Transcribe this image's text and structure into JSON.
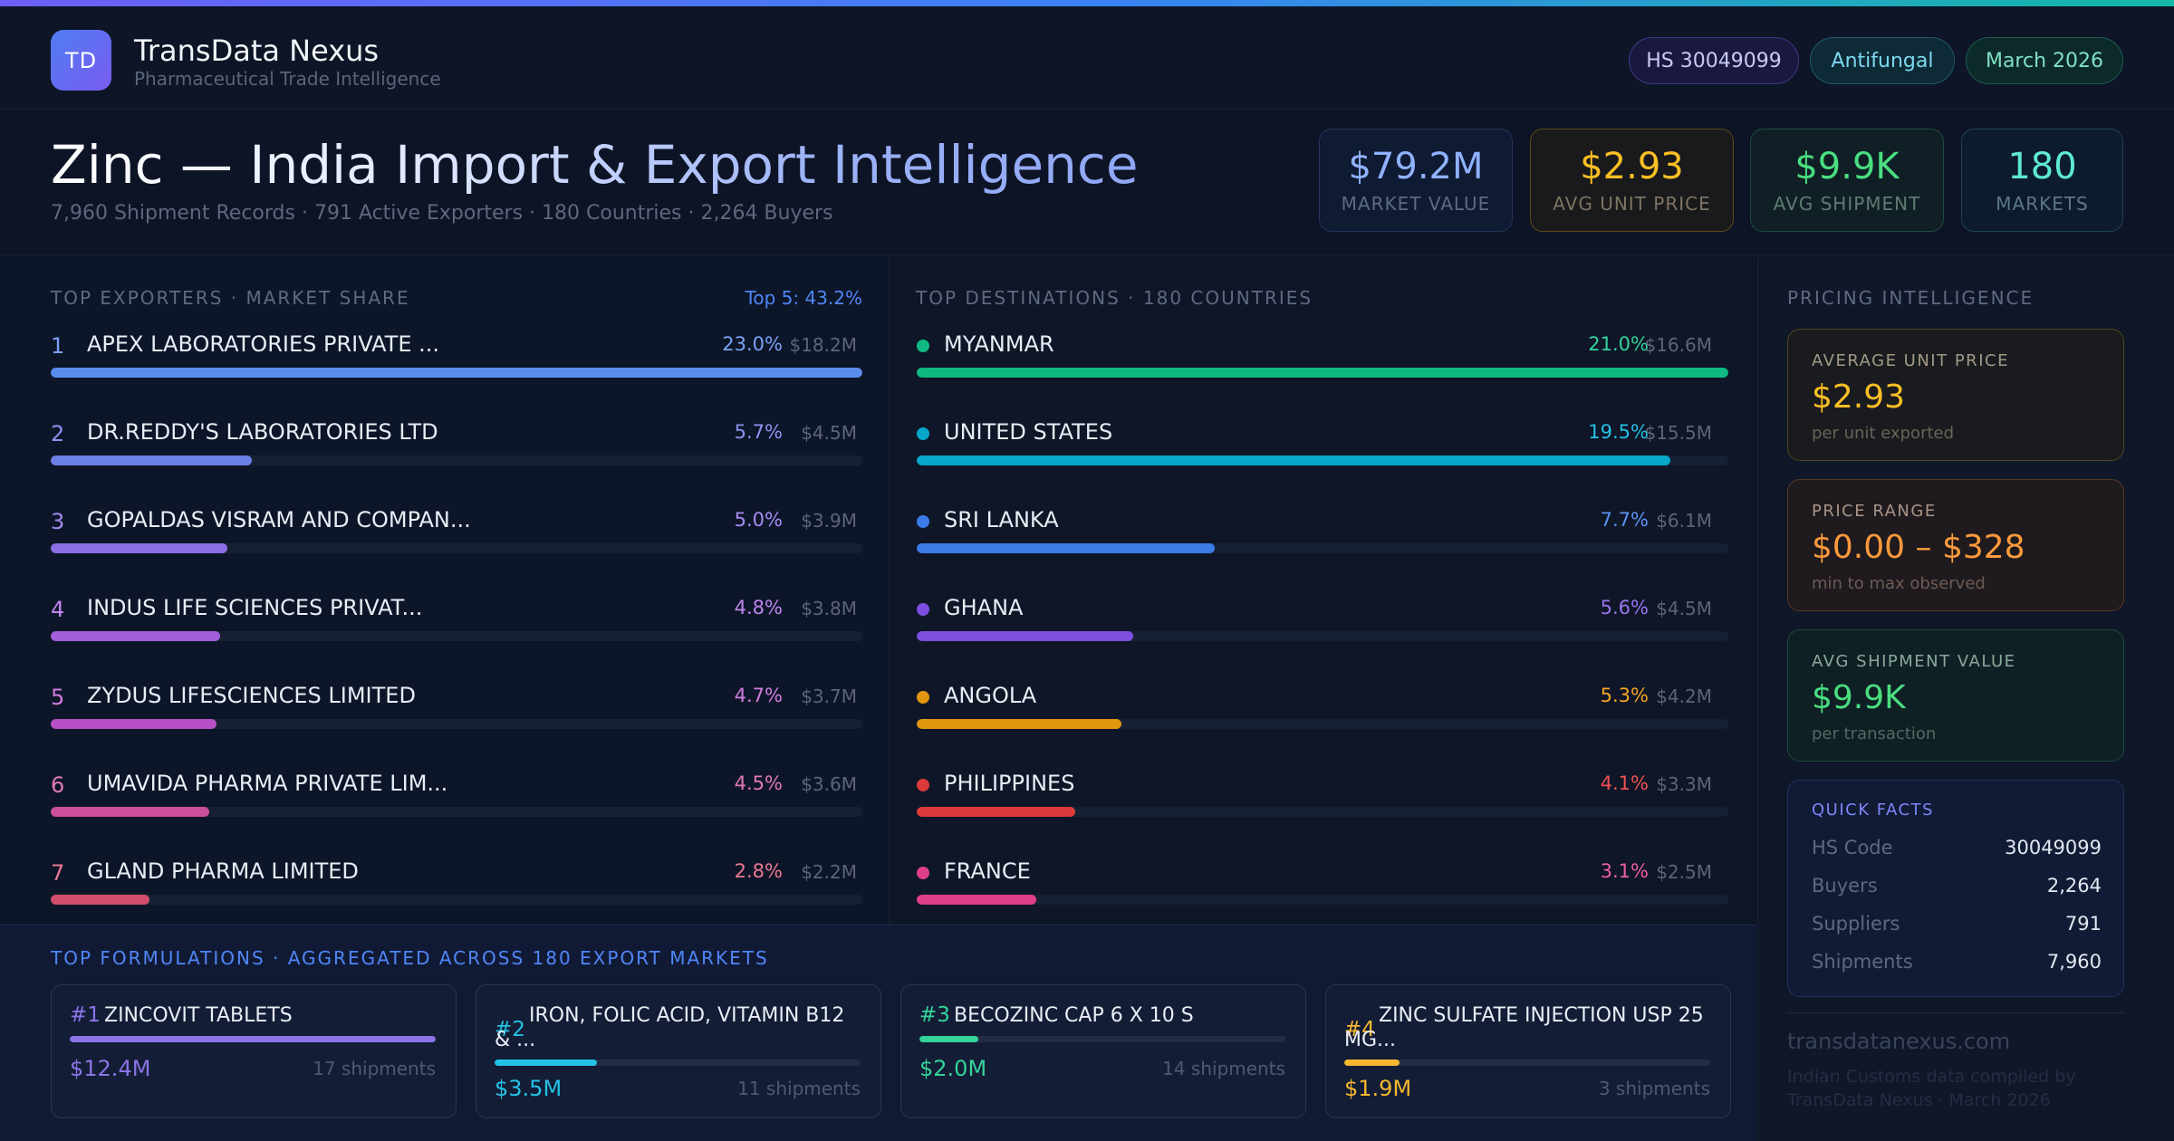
{
  "header": {
    "logo_text": "TD",
    "brand_name": "TransData Nexus",
    "brand_sub": "Pharmaceutical Trade Intelligence",
    "pills": {
      "hs": "HS 30049099",
      "category": "Antifungal",
      "date": "March 2026"
    }
  },
  "hero": {
    "title": "Zinc — India Import & Export Intelligence",
    "subtitle": "7,960 Shipment Records · 791 Active Exporters · 180 Countries · 2,264 Buyers",
    "stats": [
      {
        "value": "$79.2M",
        "label": "MARKET VALUE"
      },
      {
        "value": "$2.93",
        "label": "AVG UNIT PRICE"
      },
      {
        "value": "$9.9K",
        "label": "AVG SHIPMENT"
      },
      {
        "value": "180",
        "label": "MARKETS"
      }
    ]
  },
  "exporters": {
    "title": "TOP EXPORTERS · MARKET SHARE",
    "top5": "Top 5: 43.2%",
    "items": [
      {
        "rank": "1",
        "name": "APEX LABORATORIES PRIVATE ...",
        "pct": "23.0%",
        "value": "$18.2M",
        "share": 23.0,
        "color": "#5b8def",
        "text_color": "#7aa2f7"
      },
      {
        "rank": "2",
        "name": "DR.REDDY'S LABORATORIES LTD",
        "pct": "5.7%",
        "value": "$4.5M",
        "share": 5.7,
        "color": "#6b7fe6",
        "text_color": "#8b93f0"
      },
      {
        "rank": "3",
        "name": "GOPALDAS VISRAM AND COMPAN...",
        "pct": "5.0%",
        "value": "$3.9M",
        "share": 5.0,
        "color": "#8a6ee6",
        "text_color": "#a58bf2"
      },
      {
        "rank": "4",
        "name": "INDUS LIFE SCIENCES PRIVAT...",
        "pct": "4.8%",
        "value": "$3.8M",
        "share": 4.8,
        "color": "#a35fd9",
        "text_color": "#bf85ef"
      },
      {
        "rank": "5",
        "name": "ZYDUS LIFESCIENCES LIMITED",
        "pct": "4.7%",
        "value": "$3.7M",
        "share": 4.7,
        "color": "#b94fc6",
        "text_color": "#d17ce0"
      },
      {
        "rank": "6",
        "name": "UMAVIDA PHARMA PRIVATE LIM...",
        "pct": "4.5%",
        "value": "$3.6M",
        "share": 4.5,
        "color": "#cc4f9a",
        "text_color": "#e07ab3"
      },
      {
        "rank": "7",
        "name": "GLAND PHARMA LIMITED",
        "pct": "2.8%",
        "value": "$2.2M",
        "share": 2.8,
        "color": "#d24d6c",
        "text_color": "#ea7890"
      }
    ]
  },
  "destinations": {
    "title": "TOP DESTINATIONS · 180 COUNTRIES",
    "items": [
      {
        "name": "MYANMAR",
        "pct": "21.0%",
        "value": "$16.6M",
        "share": 21.0,
        "color": "#10b981",
        "text_color": "#34d399"
      },
      {
        "name": "UNITED STATES",
        "pct": "19.5%",
        "value": "$15.5M",
        "share": 19.5,
        "color": "#06a6c9",
        "text_color": "#22c3e6"
      },
      {
        "name": "SRI LANKA",
        "pct": "7.7%",
        "value": "$6.1M",
        "share": 7.7,
        "color": "#3b7be8",
        "text_color": "#5b93f2"
      },
      {
        "name": "GHANA",
        "pct": "5.6%",
        "value": "$4.5M",
        "share": 5.6,
        "color": "#7c4fe0",
        "text_color": "#9b74f0"
      },
      {
        "name": "ANGOLA",
        "pct": "5.3%",
        "value": "$4.2M",
        "share": 5.3,
        "color": "#e0960f",
        "text_color": "#f5a623"
      },
      {
        "name": "PHILIPPINES",
        "pct": "4.1%",
        "value": "$3.3M",
        "share": 4.1,
        "color": "#dc3a3a",
        "text_color": "#f05252"
      },
      {
        "name": "FRANCE",
        "pct": "3.1%",
        "value": "$2.5M",
        "share": 3.1,
        "color": "#df3f86",
        "text_color": "#ef5da0"
      }
    ]
  },
  "pricing": {
    "title": "PRICING INTELLIGENCE",
    "avg_unit": {
      "title": "AVERAGE UNIT PRICE",
      "value": "$2.93",
      "sub": "per unit exported"
    },
    "range": {
      "title": "PRICE RANGE",
      "value": "$0.00 – $328",
      "sub": "min to max observed"
    },
    "avg_ship": {
      "title": "AVG SHIPMENT VALUE",
      "value": "$9.9K",
      "sub": "per transaction"
    },
    "quick_facts": {
      "title": "QUICK FACTS",
      "rows": [
        {
          "k": "HS Code",
          "v": "30049099"
        },
        {
          "k": "Buyers",
          "v": "2,264"
        },
        {
          "k": "Suppliers",
          "v": "791"
        },
        {
          "k": "Shipments",
          "v": "7,960"
        }
      ]
    },
    "site": "transdatanexus.com",
    "footnote": "Indian Customs data compiled by TransData Nexus · March 2026"
  },
  "formulations": {
    "title": "TOP FORMULATIONS · AGGREGATED ACROSS 180 EXPORT MARKETS",
    "items": [
      {
        "rank": "#1",
        "name": "ZINCOVIT TABLETS",
        "value": "$12.4M",
        "shipments": "17 shipments",
        "fill": 1.0,
        "color": "#8b74e6",
        "two_line": false
      },
      {
        "rank": "#2",
        "name": "IRON, FOLIC ACID, VITAMIN B12 & ...",
        "value": "$3.5M",
        "shipments": "11 shipments",
        "fill": 0.28,
        "color": "#22c3e6",
        "two_line": true
      },
      {
        "rank": "#3",
        "name": "BECOZINC CAP 6 X 10 S",
        "value": "$2.0M",
        "shipments": "14 shipments",
        "fill": 0.16,
        "color": "#34d399",
        "two_line": false
      },
      {
        "rank": "#4",
        "name": "ZINC SULFATE INJECTION USP 25 MG...",
        "value": "$1.9M",
        "shipments": "3 shipments",
        "fill": 0.15,
        "color": "#f5b82e",
        "two_line": true
      }
    ]
  }
}
